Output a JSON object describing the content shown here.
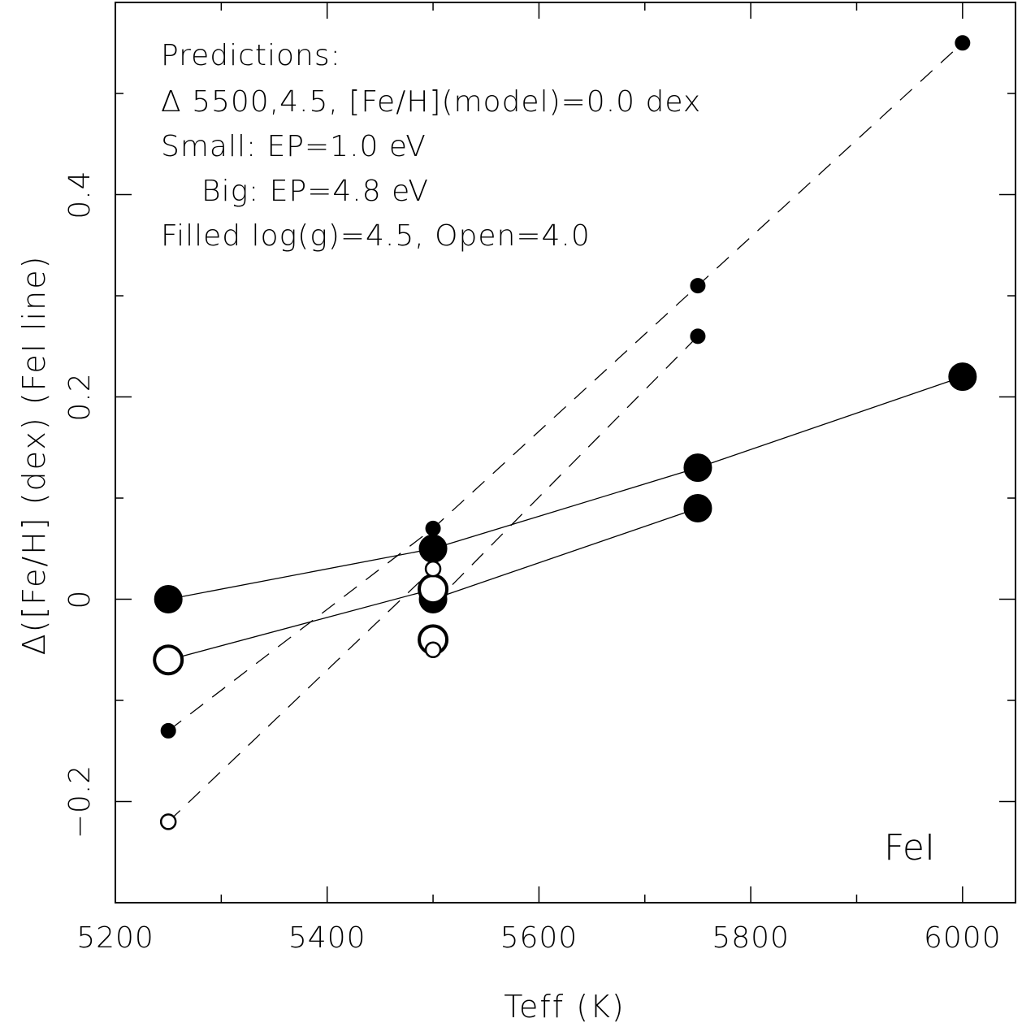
{
  "chart_data": {
    "type": "scatter",
    "xlabel": "Teff (K)",
    "ylabel": "Δ([Fe/H] (dex) (FeI line)",
    "xlim": [
      5200,
      6050
    ],
    "ylim": [
      -0.3,
      0.59
    ],
    "x_ticks": [
      5200,
      5400,
      5600,
      5800,
      6000
    ],
    "x_tick_labels": [
      "5200",
      "5400",
      "5600",
      "5800",
      "6000"
    ],
    "y_ticks": [
      -0.2,
      0,
      0.2,
      0.4
    ],
    "y_tick_labels": [
      "−0.2",
      "0",
      "0.2",
      "0.4"
    ],
    "annotations": [
      "Predictions:",
      "Δ 5500,4.5, [Fe/H](model)=0.0 dex",
      "Small: EP=1.0 eV",
      "Big: EP=4.8 eV",
      "Filled log(g)=4.5, Open=4.0"
    ],
    "corner_label": "FeI",
    "grid": false,
    "series": [
      {
        "marker": "big",
        "filled": true,
        "line": "solid",
        "points": [
          [
            5250,
            0.0
          ],
          [
            5500,
            0.05
          ],
          [
            5750,
            0.13
          ],
          [
            6000,
            0.22
          ]
        ]
      },
      {
        "marker": "big",
        "filled": true,
        "line": "solid",
        "points": [
          [
            5500,
            0.0
          ],
          [
            5750,
            0.09
          ]
        ]
      },
      {
        "marker": "big",
        "filled": false,
        "line": "solid",
        "points": [
          [
            5250,
            -0.06
          ],
          [
            5500,
            0.01
          ]
        ]
      },
      {
        "marker": "big",
        "filled": false,
        "line": "none",
        "points": [
          [
            5500,
            -0.04
          ]
        ]
      },
      {
        "marker": "small",
        "filled": true,
        "line": "dashed",
        "points": [
          [
            5250,
            -0.13
          ],
          [
            5500,
            0.07
          ],
          [
            5750,
            0.31
          ],
          [
            6000,
            0.55
          ]
        ]
      },
      {
        "marker": "small",
        "filled": true,
        "line": "none",
        "points": [
          [
            5750,
            0.26
          ]
        ]
      },
      {
        "marker": "small",
        "filled": false,
        "line": "dashed",
        "points": [
          [
            5250,
            -0.22
          ],
          [
            5500,
            0.03
          ]
        ]
      },
      {
        "marker": "small",
        "filled": false,
        "line": "none",
        "points": [
          [
            5500,
            -0.05
          ]
        ]
      },
      {
        "marker": "none",
        "filled": false,
        "line": "dashed",
        "points": [
          [
            5500,
            -0.005
          ],
          [
            5750,
            0.26
          ]
        ]
      }
    ]
  }
}
